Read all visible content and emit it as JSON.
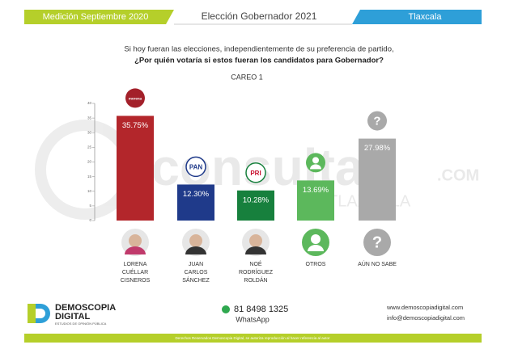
{
  "header": {
    "left": "Medición Septiembre 2020",
    "center": "Elección Gobernador 2021",
    "right": "Tlaxcala"
  },
  "chart_data": {
    "type": "bar",
    "subtitle": [
      "Si hoy fueran las elecciones, independientemente de su preferencia de partido,",
      "¿Por quién votaría si estos fueran los candidatos para Gobernador?"
    ],
    "title": "CAREO 1",
    "categories": [
      [
        "LORENA",
        "CUÉLLAR",
        "CISNEROS"
      ],
      [
        "JUAN",
        "CARLOS",
        "SÁNCHEZ"
      ],
      [
        "NOÉ",
        "RODRÍGUEZ",
        "ROLDÁN"
      ],
      [
        "OTROS"
      ],
      [
        "AÚN NO SABE"
      ]
    ],
    "logos": [
      "morena",
      "PAN",
      "PRI",
      null,
      "?"
    ],
    "values": [
      35.75,
      12.3,
      10.28,
      13.69,
      27.98
    ],
    "value_labels": [
      "35.75%",
      "12.30%",
      "10.28%",
      "13.69%",
      "27.98%"
    ],
    "colors": [
      "#b3262b",
      "#1f3a8a",
      "#17803d",
      "#5cb85c",
      "#a9a9a9"
    ],
    "ylim": [
      0,
      40
    ],
    "yticks": [
      0,
      5,
      10,
      15,
      20,
      25,
      30,
      35,
      40
    ]
  },
  "watermark": {
    "brand": "-consulta",
    "domain": ".COM",
    "place": "TLAXCALA"
  },
  "footer": {
    "brand": "DEMOSCOPIA",
    "brand2": "DIGITAL",
    "tagline": "ESTUDIOS DE OPINIÓN PÚBLICA",
    "phone": "81 8498 1325",
    "app": "WhatsApp",
    "web": "www.demoscopiadigital.com",
    "email": "info@demoscopiadigital.com",
    "rights": "Derechos Reservados Demoscopia Digital, se autoriza reproducción al hacer referencia al autor"
  }
}
